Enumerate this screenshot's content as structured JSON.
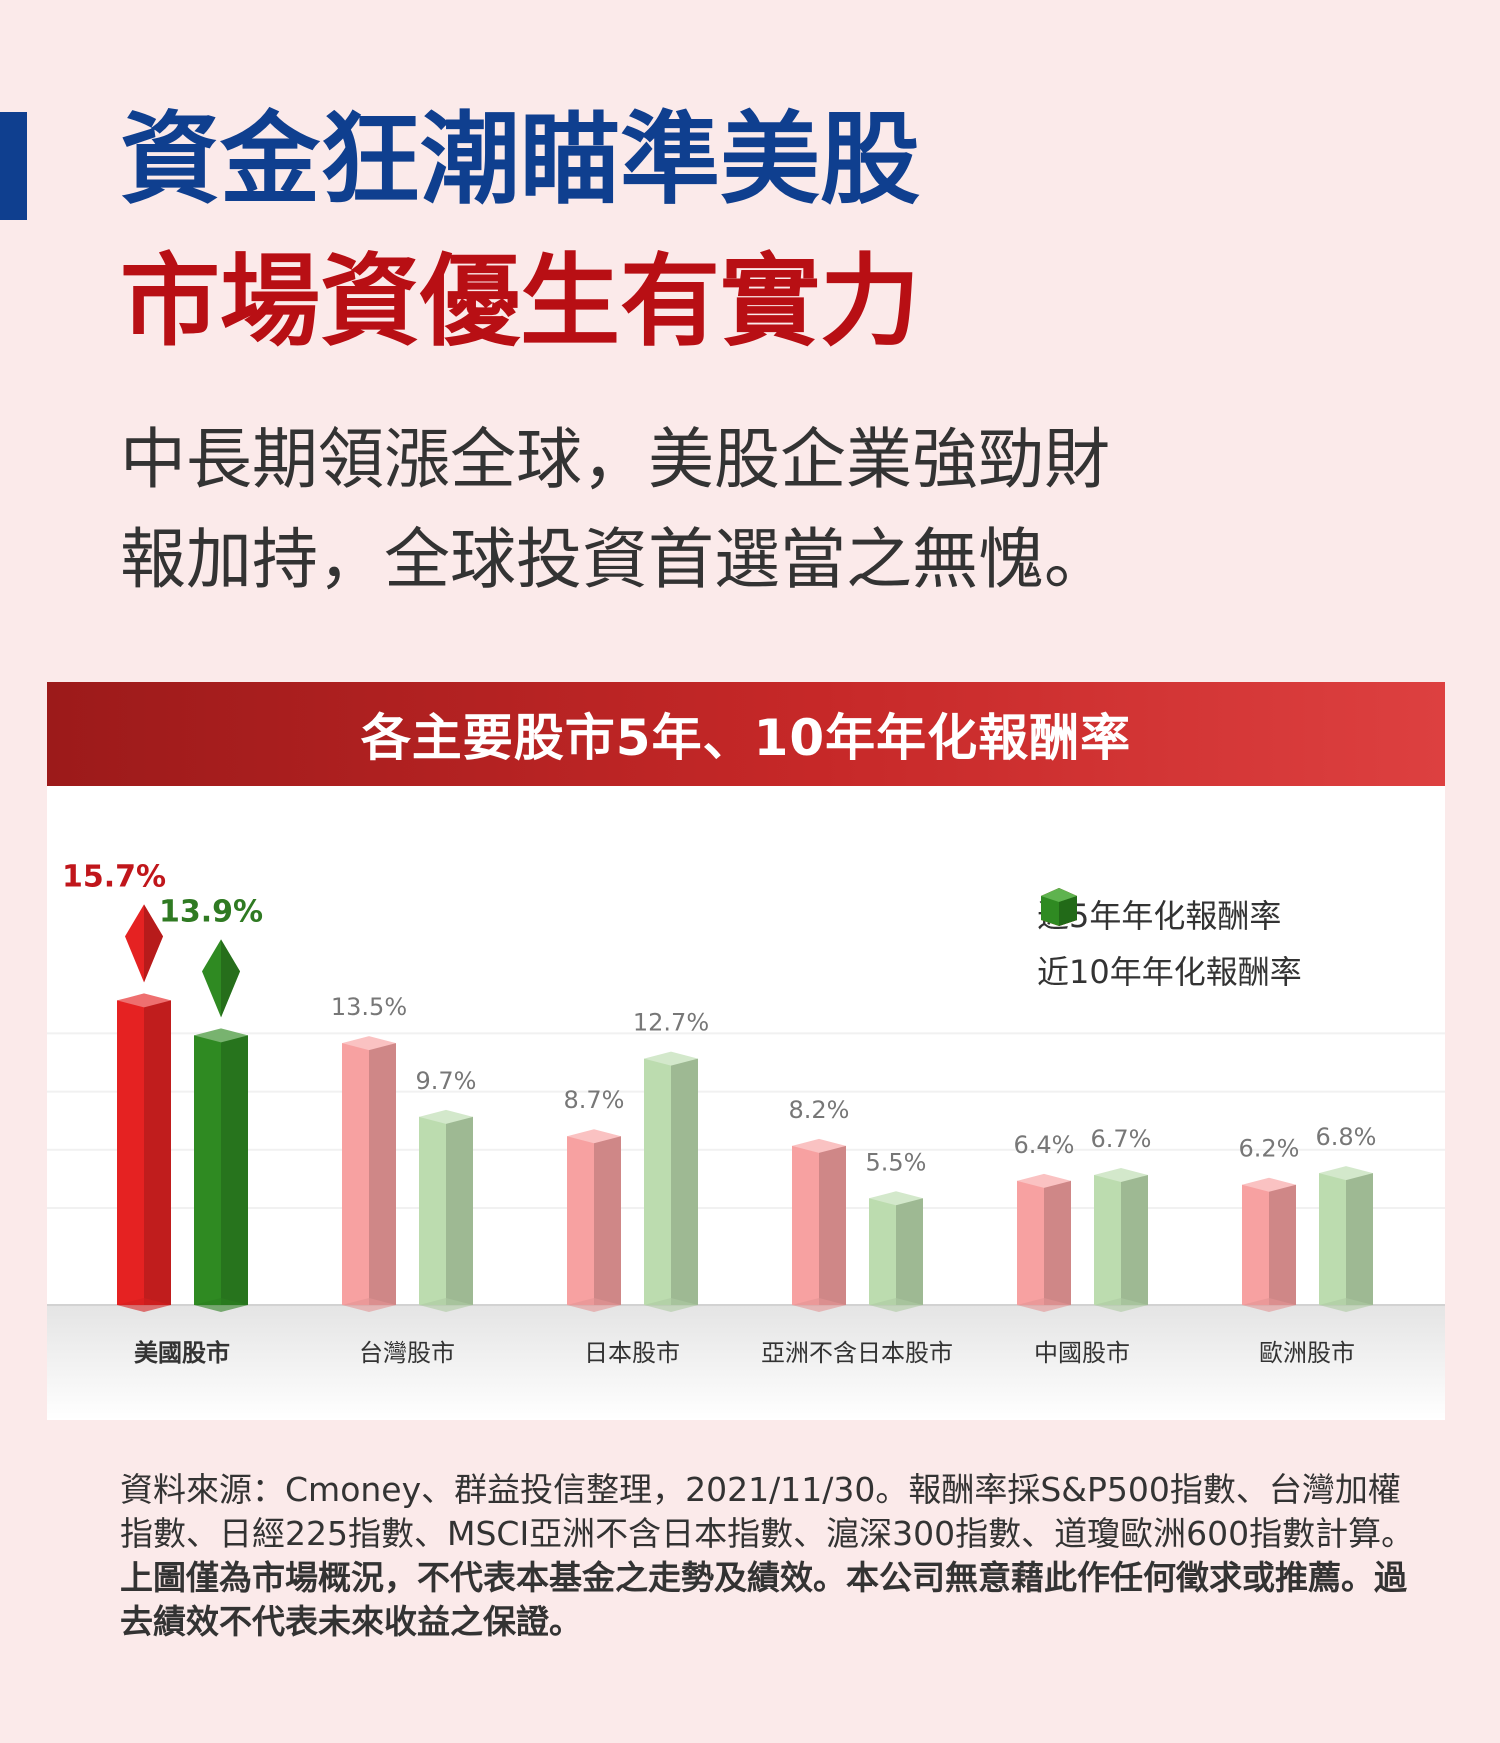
{
  "header": {
    "title_line1": "資金狂潮瞄準美股",
    "title_line2": "市場資優生有實力",
    "subtitle_line1": "中長期領漲全球，美股企業強勁財",
    "subtitle_line2": "報加持，全球投資首選當之無愧。"
  },
  "colors": {
    "title_blue": "#0f3f8f",
    "title_red": "#b80f14",
    "five_year_highlight": "#e52222",
    "ten_year_highlight": "#2f8a22",
    "five_year": "#f7a1a1",
    "ten_year": "#bcdcaf"
  },
  "chart_data": {
    "type": "bar",
    "title": "各主要股市5年、10年年化報酬率",
    "xlabel": "",
    "ylabel": "",
    "ylim": [
      0,
      17
    ],
    "grid": true,
    "legend_position": "top-right",
    "categories": [
      "美國股市",
      "台灣股市",
      "日本股市",
      "亞洲不含日本股市",
      "中國股市",
      "歐洲股市"
    ],
    "highlight_category": "美國股市",
    "series": [
      {
        "name": "近5年年化報酬率",
        "values": [
          15.7,
          13.5,
          8.7,
          8.2,
          6.4,
          6.2
        ],
        "labels": [
          "15.7%",
          "13.5%",
          "8.7%",
          "8.2%",
          "6.4%",
          "6.2%"
        ]
      },
      {
        "name": "近10年年化報酬率",
        "values": [
          13.9,
          9.7,
          12.7,
          5.5,
          6.7,
          6.8
        ],
        "labels": [
          "13.9%",
          "9.7%",
          "12.7%",
          "5.5%",
          "6.7%",
          "6.8%"
        ]
      }
    ]
  },
  "footnote": {
    "normal": "資料來源：Cmoney、群益投信整理，2021/11/30。報酬率採S&P500指數、台灣加權指數、日經225指數、MSCI亞洲不含日本指數、滬深300指數、道瓊歐洲600指數計算。",
    "bold": "上圖僅為市場概況，不代表本基金之走勢及績效。本公司無意藉此作任何徵求或推薦。過去績效不代表未來收益之保證。"
  }
}
